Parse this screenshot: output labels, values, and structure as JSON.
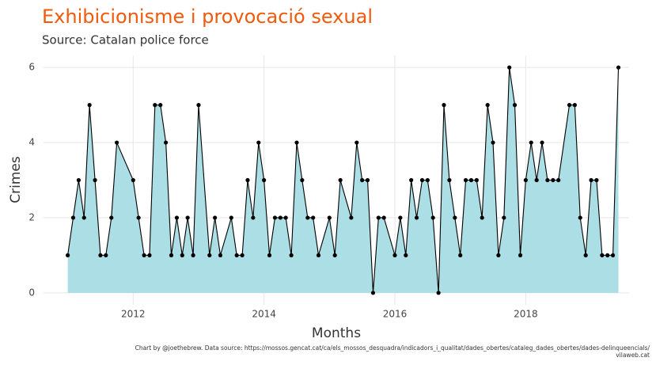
{
  "chart_data": {
    "type": "area",
    "title": "Exhibicionisme i provocació sexual",
    "subtitle": "Source: Catalan police force",
    "x_label": "Months",
    "y_label": "Crimes",
    "caption": [
      "Chart by @joethebrew. Data source: https://mossos.gencat.cat/ca/els_mossos_desquadra/indicadors_i_qualitat/dades_obertes/cataleg_dades_obertes/dades-delinqueencials/",
      "vilaweb.cat"
    ],
    "color": "#abdee5",
    "line_color": "#000000",
    "title_color": "#f05a0a",
    "x": [
      2011,
      2011.083,
      2011.167,
      2011.25,
      2011.333,
      2011.417,
      2011.5,
      2011.583,
      2011.667,
      2011.75,
      2012,
      2012.083,
      2012.167,
      2012.25,
      2012.333,
      2012.417,
      2012.5,
      2012.583,
      2012.667,
      2012.75,
      2012.833,
      2012.917,
      2013,
      2013.167,
      2013.25,
      2013.333,
      2013.5,
      2013.583,
      2013.667,
      2013.75,
      2013.833,
      2013.917,
      2014,
      2014.083,
      2014.167,
      2014.25,
      2014.333,
      2014.417,
      2014.5,
      2014.583,
      2014.667,
      2014.75,
      2014.833,
      2015,
      2015.083,
      2015.167,
      2015.333,
      2015.417,
      2015.5,
      2015.583,
      2015.667,
      2015.75,
      2015.833,
      2016,
      2016.083,
      2016.167,
      2016.25,
      2016.333,
      2016.417,
      2016.5,
      2016.583,
      2016.667,
      2016.75,
      2016.833,
      2016.917,
      2017,
      2017.083,
      2017.167,
      2017.25,
      2017.333,
      2017.417,
      2017.5,
      2017.583,
      2017.667,
      2017.75,
      2017.833,
      2017.917,
      2018,
      2018.083,
      2018.167,
      2018.25,
      2018.333,
      2018.417,
      2018.5,
      2018.667,
      2018.75,
      2018.833,
      2018.917,
      2019,
      2019.083,
      2019.167,
      2019.25,
      2019.333,
      2019.417
    ],
    "values": [
      1,
      2,
      3,
      2,
      5,
      3,
      1,
      1,
      2,
      4,
      3,
      2,
      1,
      1,
      5,
      5,
      4,
      1,
      2,
      1,
      2,
      1,
      5,
      1,
      2,
      1,
      2,
      1,
      1,
      3,
      2,
      4,
      3,
      1,
      2,
      2,
      2,
      1,
      4,
      3,
      2,
      2,
      1,
      2,
      1,
      3,
      2,
      4,
      3,
      3,
      0,
      2,
      2,
      1,
      2,
      1,
      3,
      2,
      3,
      3,
      2,
      0,
      5,
      3,
      2,
      1,
      3,
      3,
      3,
      2,
      5,
      4,
      1,
      2,
      6,
      5,
      1,
      3,
      4,
      3,
      4,
      3,
      3,
      3,
      5,
      5,
      2,
      1,
      3,
      3,
      1,
      1,
      1,
      6
    ],
    "xlim": [
      2010.63,
      2019.58
    ],
    "xticks": [
      2012,
      2014,
      2016,
      2018
    ],
    "ylim": [
      -0.32,
      6.32
    ],
    "yticks": [
      0,
      2,
      4,
      6
    ],
    "grid": true
  }
}
